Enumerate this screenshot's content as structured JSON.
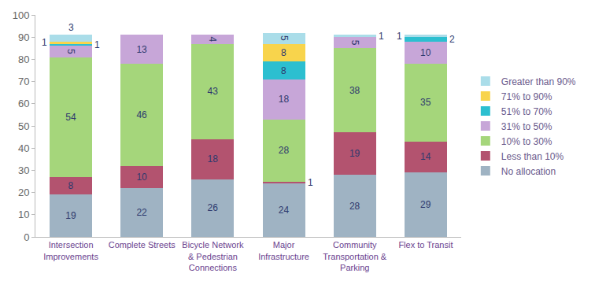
{
  "chart_data": {
    "type": "bar",
    "stacked": true,
    "data_labels": true,
    "grid": false,
    "legend": "right",
    "categories": [
      "Intersection Improvements",
      "Complete Streets",
      "Bicycle Network & Pedestrian Connections",
      "Major Infrastructure",
      "Community Transportation & Parking",
      "Flex to Transit"
    ],
    "series": [
      {
        "name": "No allocation",
        "color": "#9fb3c3",
        "values": [
          19,
          22,
          26,
          24,
          28,
          29
        ]
      },
      {
        "name": "Less than 10%",
        "color": "#b3536f",
        "values": [
          8,
          10,
          18,
          1,
          19,
          14
        ]
      },
      {
        "name": "10% to 30%",
        "color": "#a5d67b",
        "values": [
          54,
          46,
          43,
          28,
          38,
          35
        ]
      },
      {
        "name": "31% to 50%",
        "color": "#c7a6d8",
        "values": [
          5,
          13,
          4,
          18,
          5,
          10
        ]
      },
      {
        "name": "51% to 70%",
        "color": "#2cbfd0",
        "values": [
          1,
          null,
          null,
          8,
          null,
          2
        ]
      },
      {
        "name": "71% to 90%",
        "color": "#f8d44c",
        "values": [
          1,
          null,
          null,
          8,
          null,
          null
        ]
      },
      {
        "name": "Greater than 90%",
        "color": "#aadde9",
        "values": [
          3,
          null,
          null,
          5,
          1,
          1
        ]
      }
    ],
    "ylim": [
      0,
      100
    ],
    "yticks": [
      0,
      10,
      20,
      30,
      40,
      50,
      60,
      70,
      80,
      90,
      100
    ]
  }
}
